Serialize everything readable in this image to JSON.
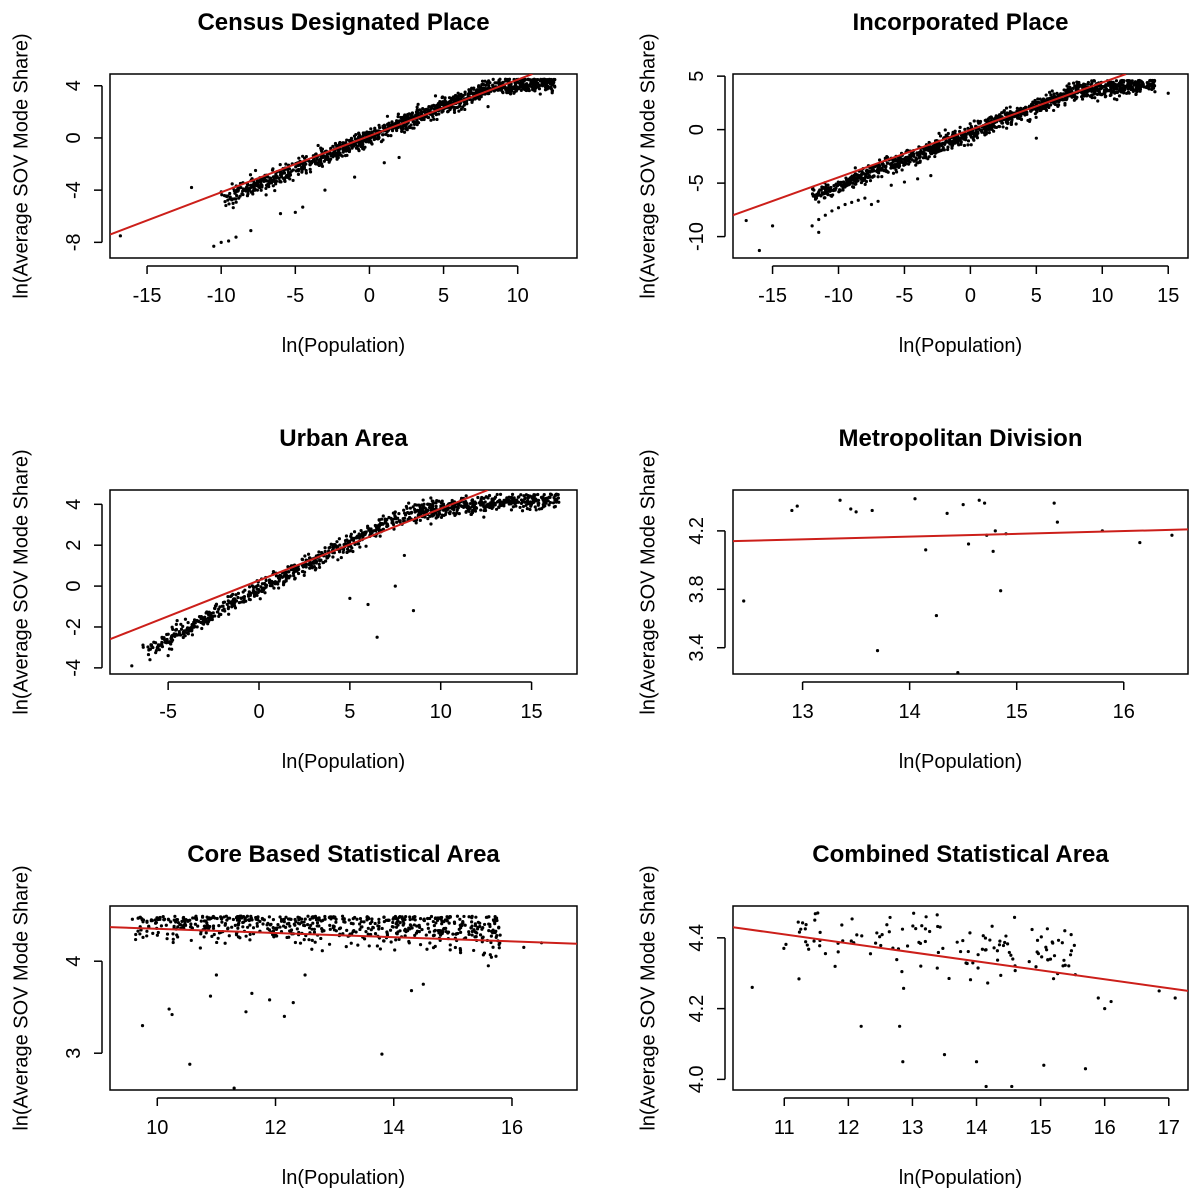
{
  "chart_data": [
    {
      "type": "scatter",
      "title": "Census Designated Place",
      "xlabel": "ln(Population)",
      "ylabel": "ln(Average SOV Mode Share)",
      "xlim": [
        -17.5,
        14
      ],
      "ylim": [
        -9.2,
        4.9
      ],
      "xticks": [
        -15,
        -10,
        -5,
        0,
        5,
        10
      ],
      "yticks": [
        -8,
        -4,
        0,
        4
      ],
      "fit": {
        "x": [
          -17.5,
          11
        ],
        "y": [
          -7.4,
          4.9
        ]
      },
      "cloud": {
        "n": 1200,
        "x_range": [
          -10,
          12.5
        ],
        "y_at_x": [
          [
            -10,
            -4.8
          ],
          [
            0,
            0.1
          ],
          [
            8,
            3.8
          ],
          [
            12.5,
            4.3
          ]
        ],
        "spread": 0.6,
        "cap": 4.5,
        "seed": 11
      },
      "outliers": [
        [
          -16.8,
          -7.5
        ],
        [
          -12,
          -3.8
        ],
        [
          -10.5,
          -8.3
        ],
        [
          -10,
          -8.0
        ],
        [
          -9.5,
          -7.9
        ],
        [
          -9,
          -7.6
        ],
        [
          -8,
          -7.1
        ],
        [
          -6,
          -5.8
        ],
        [
          -5,
          -5.7
        ],
        [
          -4.5,
          -5.3
        ],
        [
          -3,
          -4.0
        ],
        [
          -1,
          -3.0
        ],
        [
          1,
          -1.9
        ],
        [
          2,
          -1.5
        ],
        [
          8,
          2.4
        ],
        [
          12.5,
          3.9
        ]
      ]
    },
    {
      "type": "scatter",
      "title": "Incorporated Place",
      "xlabel": "ln(Population)",
      "ylabel": "ln(Average SOV Mode Share)",
      "xlim": [
        -18,
        16.5
      ],
      "ylim": [
        -12,
        5.2
      ],
      "xticks": [
        -15,
        -10,
        -5,
        0,
        5,
        10,
        15
      ],
      "yticks": [
        -10,
        -5,
        0,
        5
      ],
      "fit": {
        "x": [
          -18,
          11.8
        ],
        "y": [
          -8.0,
          5.2
        ]
      },
      "cloud": {
        "n": 1300,
        "x_range": [
          -12,
          14
        ],
        "y_at_x": [
          [
            -12,
            -6.2
          ],
          [
            0,
            -0.3
          ],
          [
            8,
            3.6
          ],
          [
            14,
            4.3
          ]
        ],
        "spread": 0.7,
        "cap": 4.6,
        "seed": 23
      },
      "outliers": [
        [
          -17,
          -8.5
        ],
        [
          -16,
          -11.3
        ],
        [
          -15,
          -9.0
        ],
        [
          -12,
          -9.0
        ],
        [
          -11.5,
          -8.4
        ],
        [
          -11.5,
          -9.6
        ],
        [
          -11,
          -8.0
        ],
        [
          -10.5,
          -7.6
        ],
        [
          -10,
          -7.3
        ],
        [
          -9.5,
          -7.0
        ],
        [
          -9,
          -6.8
        ],
        [
          -8.5,
          -6.6
        ],
        [
          -8,
          -6.4
        ],
        [
          -7.5,
          -7.0
        ],
        [
          -7,
          -6.7
        ],
        [
          -6,
          -5.2
        ],
        [
          -5,
          -4.9
        ],
        [
          -4,
          -4.6
        ],
        [
          -3,
          -4.3
        ],
        [
          5,
          -0.8
        ],
        [
          13.5,
          3.9
        ],
        [
          15,
          3.4
        ]
      ]
    },
    {
      "type": "scatter",
      "title": "Urban Area",
      "xlabel": "ln(Population)",
      "ylabel": "ln(Average SOV Mode Share)",
      "xlim": [
        -8.2,
        17.5
      ],
      "ylim": [
        -4.3,
        4.7
      ],
      "xticks": [
        -5,
        0,
        5,
        10,
        15
      ],
      "yticks": [
        -4,
        -2,
        0,
        2,
        4
      ],
      "fit": {
        "x": [
          -8.2,
          12.6
        ],
        "y": [
          -2.6,
          4.7
        ]
      },
      "cloud": {
        "n": 1000,
        "x_range": [
          -6.5,
          16.5
        ],
        "y_at_x": [
          [
            -6,
            -3.1
          ],
          [
            0,
            -0.1
          ],
          [
            5,
            2.1
          ],
          [
            8,
            3.5
          ],
          [
            12,
            4.0
          ],
          [
            16.5,
            4.25
          ]
        ],
        "spread": 0.4,
        "cap": 4.5,
        "seed": 37
      },
      "outliers": [
        [
          -7,
          -3.9
        ],
        [
          -6,
          -3.6
        ],
        [
          -5,
          -3.4
        ],
        [
          5,
          -0.6
        ],
        [
          6,
          -0.9
        ],
        [
          6.5,
          -2.5
        ],
        [
          7.5,
          0
        ],
        [
          8,
          1.5
        ],
        [
          8.5,
          -1.2
        ],
        [
          16.5,
          4.1
        ]
      ]
    },
    {
      "type": "scatter",
      "title": "Metropolitan Division",
      "xlabel": "ln(Population)",
      "ylabel": "ln(Average SOV Mode Share)",
      "xlim": [
        12.35,
        16.6
      ],
      "ylim": [
        3.22,
        4.48
      ],
      "xticks": [
        13,
        14,
        15,
        16
      ],
      "yticks": [
        3.4,
        3.8,
        4.2
      ],
      "fit": {
        "x": [
          12.35,
          16.6
        ],
        "y": [
          4.13,
          4.21
        ]
      },
      "points": [
        [
          12.45,
          3.72
        ],
        [
          12.9,
          4.34
        ],
        [
          12.95,
          4.37
        ],
        [
          13.35,
          4.41
        ],
        [
          13.45,
          4.35
        ],
        [
          13.5,
          4.33
        ],
        [
          13.65,
          4.34
        ],
        [
          13.7,
          3.38
        ],
        [
          14.05,
          4.42
        ],
        [
          14.15,
          4.07
        ],
        [
          14.25,
          3.62
        ],
        [
          14.35,
          4.32
        ],
        [
          14.45,
          3.23
        ],
        [
          14.5,
          4.38
        ],
        [
          14.55,
          4.11
        ],
        [
          14.65,
          4.41
        ],
        [
          14.7,
          4.39
        ],
        [
          14.72,
          4.17
        ],
        [
          14.78,
          4.06
        ],
        [
          14.8,
          4.2
        ],
        [
          14.85,
          3.79
        ],
        [
          14.9,
          4.18
        ],
        [
          15.35,
          4.39
        ],
        [
          15.38,
          4.26
        ],
        [
          15.8,
          4.2
        ],
        [
          16.15,
          4.12
        ],
        [
          16.45,
          4.17
        ]
      ]
    },
    {
      "type": "scatter",
      "title": "Core Based Statistical Area",
      "xlabel": "ln(Population)",
      "ylabel": "ln(Average SOV Mode Share)",
      "xlim": [
        9.2,
        17.1
      ],
      "ylim": [
        2.6,
        4.6
      ],
      "xticks": [
        10,
        12,
        14,
        16
      ],
      "yticks": [
        3.0,
        4.0
      ],
      "fit": {
        "x": [
          9.2,
          17.1
        ],
        "y": [
          4.37,
          4.19
        ]
      },
      "cloud": {
        "n": 650,
        "x_range": [
          9.5,
          15.8
        ],
        "y_at_x": [
          [
            9.5,
            4.42
          ],
          [
            11,
            4.42
          ],
          [
            12,
            4.4
          ],
          [
            14,
            4.38
          ],
          [
            15.8,
            4.35
          ]
        ],
        "spread": 0.22,
        "cap": 4.49,
        "seed": 53
      },
      "outliers": [
        [
          9.75,
          3.3
        ],
        [
          10.2,
          3.48
        ],
        [
          10.25,
          3.42
        ],
        [
          10.55,
          2.88
        ],
        [
          10.9,
          3.62
        ],
        [
          11.0,
          3.85
        ],
        [
          11.3,
          2.62
        ],
        [
          11.5,
          3.45
        ],
        [
          11.6,
          3.65
        ],
        [
          11.9,
          3.58
        ],
        [
          12.15,
          3.4
        ],
        [
          12.3,
          3.55
        ],
        [
          12.5,
          3.85
        ],
        [
          13.8,
          2.99
        ],
        [
          14.3,
          3.68
        ],
        [
          14.5,
          3.75
        ],
        [
          15.6,
          3.95
        ],
        [
          16.2,
          4.15
        ],
        [
          16.5,
          4.2
        ]
      ]
    },
    {
      "type": "scatter",
      "title": "Combined Statistical Area",
      "xlabel": "ln(Population)",
      "ylabel": "ln(Average SOV Mode Share)",
      "xlim": [
        10.2,
        17.3
      ],
      "ylim": [
        3.97,
        4.49
      ],
      "xticks": [
        11,
        12,
        13,
        14,
        15,
        16,
        17
      ],
      "yticks": [
        4.0,
        4.2,
        4.4
      ],
      "fit": {
        "x": [
          10.2,
          17.3
        ],
        "y": [
          4.43,
          4.25
        ]
      },
      "cloud": {
        "n": 130,
        "x_range": [
          10.8,
          15.6
        ],
        "y_at_x": [
          [
            10.8,
            4.42
          ],
          [
            13,
            4.38
          ],
          [
            15.6,
            4.35
          ]
        ],
        "spread": 0.09,
        "cap": 4.475,
        "seed": 71
      },
      "outliers": [
        [
          10.5,
          4.26
        ],
        [
          12.2,
          4.15
        ],
        [
          12.8,
          4.15
        ],
        [
          12.85,
          4.05
        ],
        [
          13.5,
          4.07
        ],
        [
          14.0,
          4.05
        ],
        [
          14.15,
          3.98
        ],
        [
          14.55,
          3.98
        ],
        [
          15.05,
          4.04
        ],
        [
          15.7,
          4.03
        ],
        [
          15.9,
          4.23
        ],
        [
          16.0,
          4.2
        ],
        [
          16.1,
          4.22
        ],
        [
          16.85,
          4.25
        ],
        [
          17.1,
          4.23
        ]
      ]
    }
  ]
}
